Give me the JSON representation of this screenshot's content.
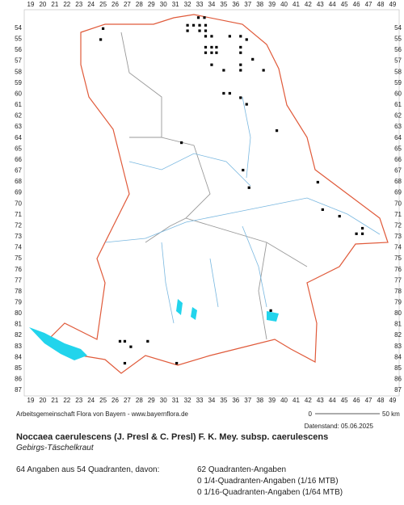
{
  "map": {
    "columns": [
      19,
      20,
      21,
      22,
      23,
      24,
      25,
      26,
      27,
      28,
      29,
      30,
      31,
      32,
      33,
      34,
      35,
      36,
      37,
      38,
      39,
      40,
      41,
      42,
      43,
      44,
      45,
      46,
      47,
      48,
      49
    ],
    "rows": [
      54,
      55,
      56,
      57,
      58,
      59,
      60,
      61,
      62,
      63,
      64,
      65,
      66,
      67,
      68,
      69,
      70,
      71,
      72,
      73,
      74,
      75,
      76,
      77,
      78,
      79,
      80,
      81,
      82,
      83,
      84,
      85,
      86,
      87
    ],
    "records": [
      [
        25,
        54.1
      ],
      [
        24.8,
        55.1
      ],
      [
        32.9,
        53.1
      ],
      [
        33.4,
        53.1
      ],
      [
        32,
        53.8
      ],
      [
        32.5,
        53.8
      ],
      [
        33,
        53.8
      ],
      [
        33.5,
        53.8
      ],
      [
        32,
        54.3
      ],
      [
        33,
        54.3
      ],
      [
        33.5,
        54.3
      ],
      [
        33.5,
        54.8
      ],
      [
        34,
        54.8
      ],
      [
        35.5,
        54.8
      ],
      [
        36.4,
        54.8
      ],
      [
        36.9,
        55.1
      ],
      [
        33.5,
        55.8
      ],
      [
        34,
        55.8
      ],
      [
        34.4,
        55.8
      ],
      [
        36.4,
        55.8
      ],
      [
        33.5,
        56.3
      ],
      [
        34,
        56.3
      ],
      [
        34.4,
        56.3
      ],
      [
        36.4,
        56.3
      ],
      [
        37.4,
        56.9
      ],
      [
        34,
        57.4
      ],
      [
        36.4,
        57.4
      ],
      [
        35,
        57.9
      ],
      [
        36.4,
        57.9
      ],
      [
        38.3,
        57.9
      ],
      [
        35,
        60
      ],
      [
        35.5,
        60
      ],
      [
        36.4,
        60.4
      ],
      [
        36.9,
        61
      ],
      [
        39.4,
        63.4
      ],
      [
        31.5,
        64.5
      ],
      [
        36.6,
        67
      ],
      [
        37.1,
        68.6
      ],
      [
        42.8,
        68.1
      ],
      [
        43.2,
        70.6
      ],
      [
        44.6,
        71.2
      ],
      [
        46,
        72.8
      ],
      [
        46.5,
        72.8
      ],
      [
        46.5,
        72.3
      ],
      [
        38.9,
        79.8
      ],
      [
        26.4,
        82.6
      ],
      [
        26.8,
        82.6
      ],
      [
        27.3,
        83.1
      ],
      [
        28.7,
        82.6
      ],
      [
        26.8,
        84.6
      ],
      [
        31.1,
        84.6
      ]
    ]
  },
  "footer": {
    "credit": "Arbeitsgemeinschaft Flora von Bayern - www.bayernflora.de",
    "scale_start": "0",
    "scale_end": "50 km",
    "date": "Datenstand: 05.06.2025",
    "title": "Noccaea caerulescens (J. Presl & C. Presl) F. K. Mey. subsp. caerulescens",
    "subtitle": "Gebirgs-Täschelkraut",
    "summary": "64 Angaben aus 54 Quadranten, davon:",
    "counts": [
      "62 Quadranten-Angaben",
      "0 1/4-Quadranten-Angaben (1/16 MTB)",
      "0 1/16-Quadranten-Angaben (1/64 MTB)"
    ]
  }
}
